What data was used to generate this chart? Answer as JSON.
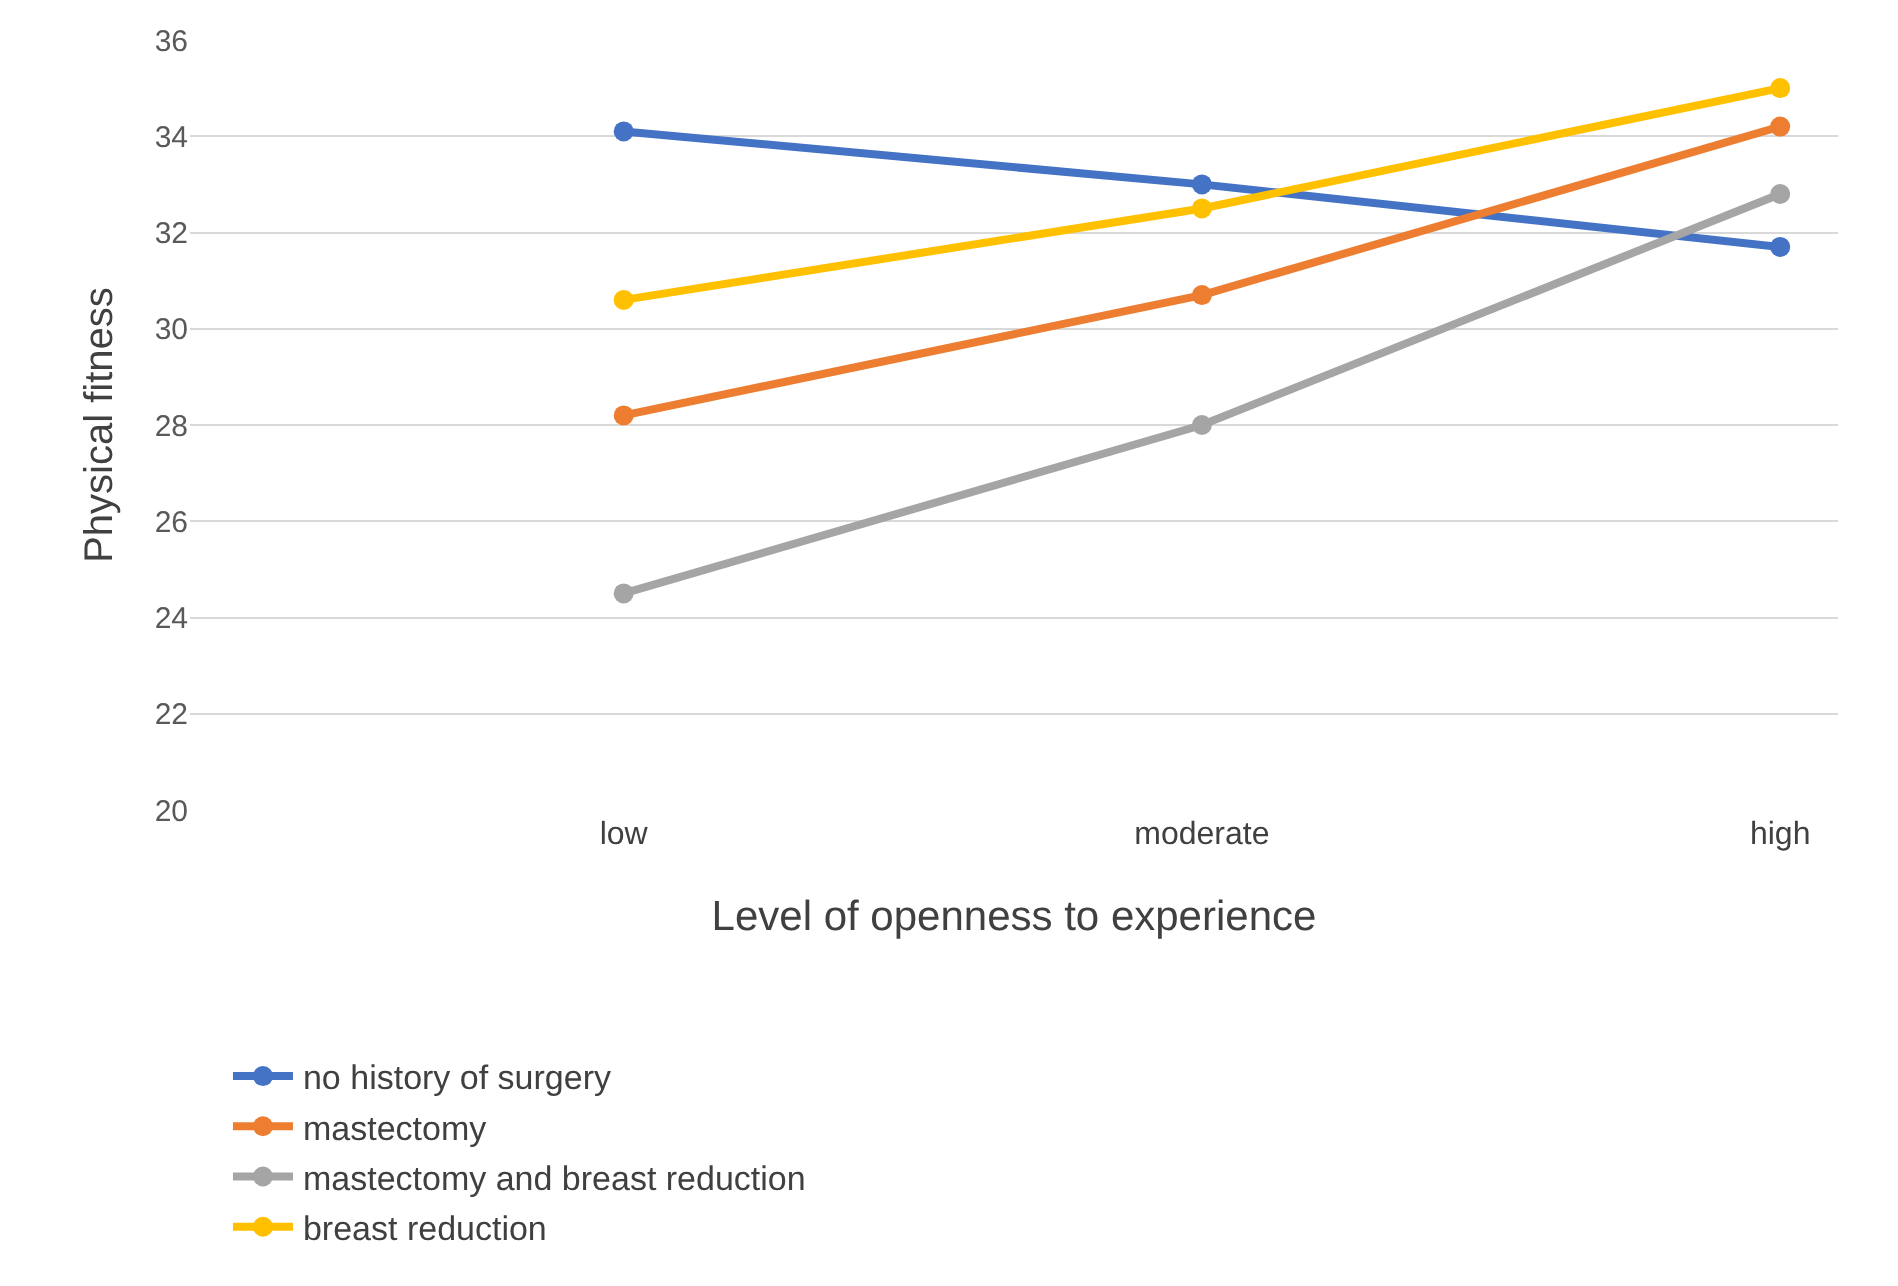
{
  "chart_data": {
    "type": "line",
    "xlabel": "Level of openness to experience",
    "ylabel": "Physical fitness",
    "categories": [
      "low",
      "moderate",
      "high"
    ],
    "series": [
      {
        "name": "no history of surgery",
        "color": "#4472c4",
        "values": [
          34.1,
          33.0,
          31.7
        ]
      },
      {
        "name": "mastectomy",
        "color": "#ed7d31",
        "values": [
          28.2,
          30.7,
          34.2
        ]
      },
      {
        "name": "mastectomy and breast reduction",
        "color": "#a5a5a5",
        "values": [
          24.5,
          28.0,
          32.8
        ]
      },
      {
        "name": "breast reduction",
        "color": "#ffc000",
        "values": [
          30.6,
          32.5,
          35.0
        ]
      }
    ],
    "ylim": [
      20,
      36
    ],
    "yticks": [
      20,
      22,
      24,
      26,
      28,
      30,
      32,
      34,
      36
    ],
    "grid": "y",
    "legend": "bottom",
    "marker": "circle",
    "line_style": "solid"
  }
}
